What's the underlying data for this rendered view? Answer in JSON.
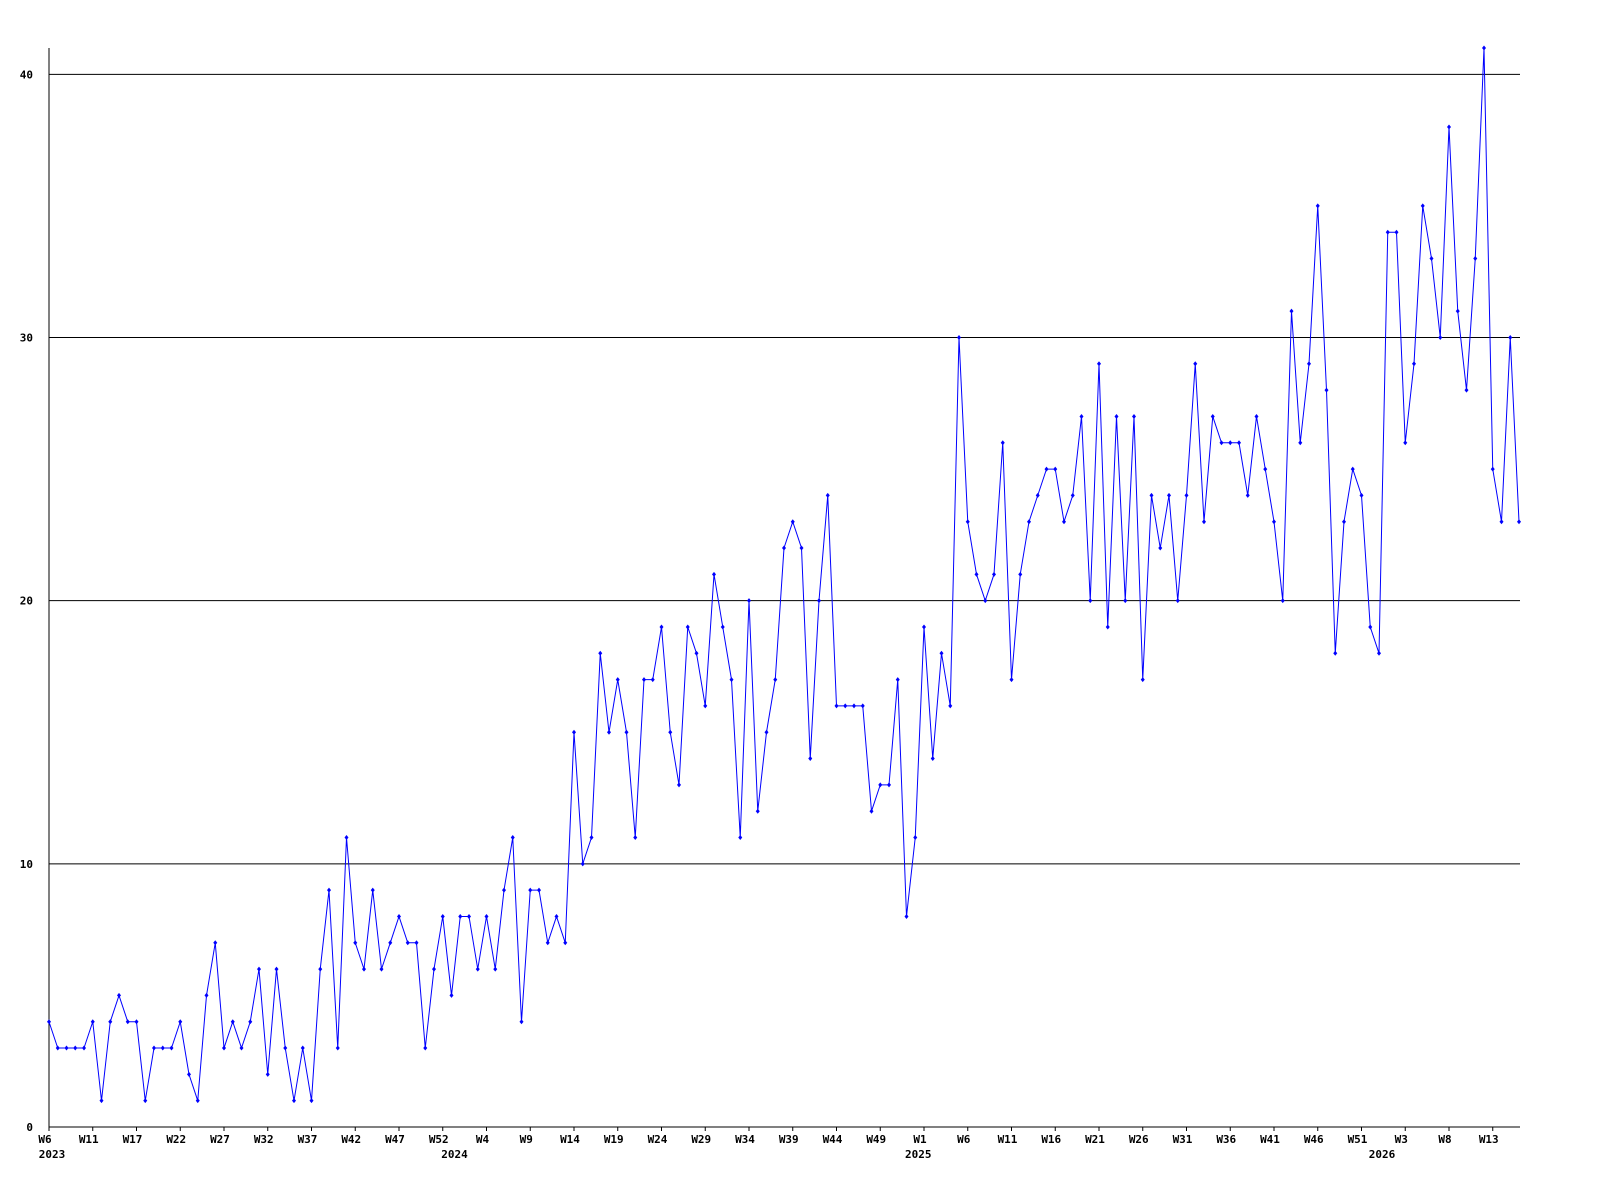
{
  "chart_data": {
    "type": "line",
    "categories": [
      "W6",
      null,
      null,
      null,
      null,
      "W11",
      null,
      null,
      null,
      null,
      "W17",
      null,
      null,
      null,
      null,
      "W22",
      null,
      null,
      null,
      null,
      "W27",
      null,
      null,
      null,
      null,
      "W32",
      null,
      null,
      null,
      null,
      "W37",
      null,
      null,
      null,
      null,
      "W42",
      null,
      null,
      null,
      null,
      "W47",
      null,
      null,
      null,
      null,
      "W52",
      null,
      null,
      null,
      null,
      "W4",
      null,
      null,
      null,
      null,
      "W9",
      null,
      null,
      null,
      null,
      "W14",
      null,
      null,
      null,
      null,
      "W19",
      null,
      null,
      null,
      null,
      "W24",
      null,
      null,
      null,
      null,
      "W29",
      null,
      null,
      null,
      null,
      "W34",
      null,
      null,
      null,
      null,
      "W39",
      null,
      null,
      null,
      null,
      "W44",
      null,
      null,
      null,
      null,
      "W49",
      null,
      null,
      null,
      null,
      "W1",
      null,
      null,
      null,
      null,
      "W6",
      null,
      null,
      null,
      null,
      "W11",
      null,
      null,
      null,
      null,
      "W16",
      null,
      null,
      null,
      null,
      "W21",
      null,
      null,
      null,
      null,
      "W26",
      null,
      null,
      null,
      null,
      "W31",
      null,
      null,
      null,
      null,
      "W36",
      null,
      null,
      null,
      null,
      "W41",
      null,
      null,
      null,
      null,
      "W46",
      null,
      null,
      null,
      null,
      "W51",
      null,
      null,
      null,
      null,
      "W3",
      null,
      null,
      null,
      null,
      "W8",
      null,
      null,
      null,
      null,
      "W13",
      null,
      null,
      null
    ],
    "year_labels": [
      "2023",
      null,
      null,
      null,
      null,
      null,
      null,
      null,
      null,
      null,
      null,
      null,
      null,
      null,
      null,
      null,
      null,
      null,
      null,
      null,
      null,
      null,
      null,
      null,
      null,
      null,
      null,
      null,
      null,
      null,
      null,
      null,
      null,
      null,
      null,
      null,
      null,
      null,
      null,
      null,
      null,
      null,
      null,
      null,
      null,
      null,
      "2024",
      null,
      null,
      null,
      null,
      null,
      null,
      null,
      null,
      null,
      null,
      null,
      null,
      null,
      null,
      null,
      null,
      null,
      null,
      null,
      null,
      null,
      null,
      null,
      null,
      null,
      null,
      null,
      null,
      null,
      null,
      null,
      null,
      null,
      null,
      null,
      null,
      null,
      null,
      null,
      null,
      null,
      null,
      null,
      null,
      null,
      null,
      null,
      null,
      null,
      null,
      null,
      null,
      "2025",
      null,
      null,
      null,
      null,
      null,
      null,
      null,
      null,
      null,
      null,
      null,
      null,
      null,
      null,
      null,
      null,
      null,
      null,
      null,
      null,
      null,
      null,
      null,
      null,
      null,
      null,
      null,
      null,
      null,
      null,
      null,
      null,
      null,
      null,
      null,
      null,
      null,
      null,
      null,
      null,
      null,
      null,
      null,
      null,
      null,
      null,
      null,
      null,
      null,
      null,
      null,
      null,
      "2026",
      null,
      null,
      null,
      null,
      null,
      null,
      null,
      null,
      null,
      null,
      null,
      null,
      null,
      null,
      null,
      null
    ],
    "series": [
      {
        "color": "#0000ff",
        "values": [
          4,
          3,
          3,
          3,
          3,
          4,
          1,
          4,
          5,
          4,
          4,
          1,
          3,
          3,
          3,
          4,
          2,
          1,
          5,
          7,
          3,
          4,
          3,
          4,
          6,
          2,
          6,
          3,
          1,
          3,
          1,
          6,
          9,
          3,
          11,
          7,
          6,
          9,
          6,
          7,
          8,
          7,
          7,
          3,
          6,
          8,
          5,
          8,
          8,
          6,
          8,
          6,
          9,
          11,
          4,
          9,
          9,
          7,
          8,
          7,
          15,
          10,
          11,
          18,
          15,
          17,
          15,
          11,
          17,
          17,
          19,
          15,
          13,
          19,
          18,
          16,
          21,
          19,
          17,
          11,
          20,
          12,
          15,
          17,
          22,
          23,
          22,
          14,
          20,
          24,
          16,
          16,
          16,
          16,
          12,
          13,
          13,
          17,
          8,
          11,
          19,
          14,
          18,
          16,
          30,
          23,
          21,
          20,
          21,
          26,
          17,
          21,
          23,
          24,
          25,
          25,
          23,
          24,
          27,
          20,
          29,
          19,
          27,
          20,
          27,
          17,
          24,
          22,
          24,
          20,
          24,
          29,
          23,
          27,
          26,
          26,
          26,
          24,
          27,
          25,
          23,
          20,
          31,
          26,
          29,
          35,
          28,
          18,
          23,
          25,
          24,
          19,
          18,
          34,
          34,
          26,
          29,
          35,
          33,
          30,
          38,
          31,
          28,
          33,
          41,
          25,
          23,
          30,
          23
        ]
      }
    ],
    "ylim": [
      0,
      41
    ],
    "yticks": [
      0,
      10,
      20,
      30,
      40
    ],
    "grid": true
  }
}
